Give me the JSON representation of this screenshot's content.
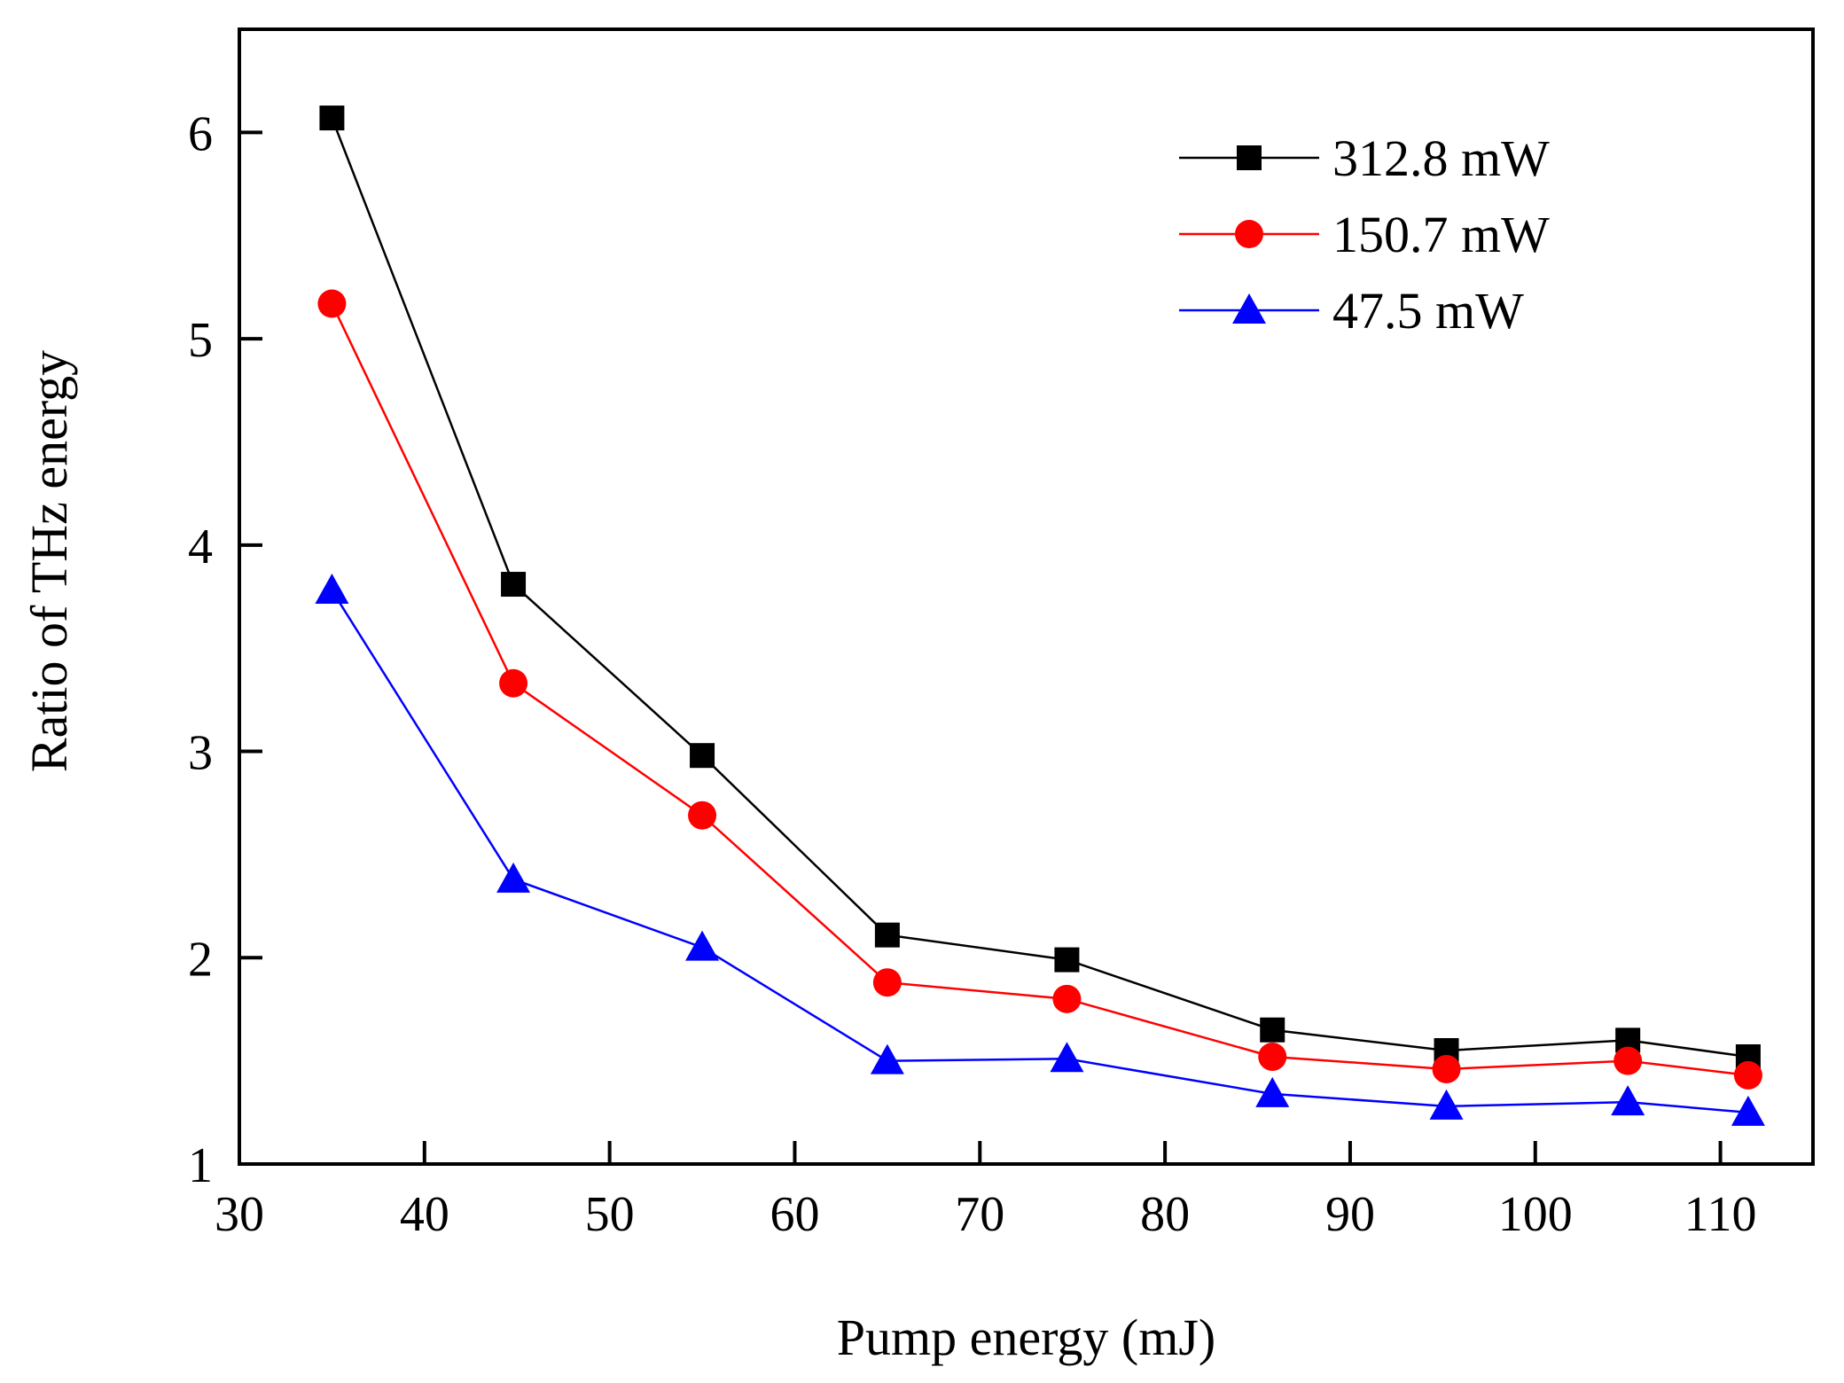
{
  "chart_data": {
    "type": "line",
    "title": "",
    "xlabel": "Pump energy (mJ)",
    "ylabel": "Ratio of THz energy",
    "xlim": [
      30,
      115
    ],
    "ylim": [
      1,
      6.5
    ],
    "xticks": [
      30,
      40,
      50,
      60,
      70,
      80,
      90,
      100,
      110
    ],
    "yticks": [
      1,
      2,
      3,
      4,
      5,
      6
    ],
    "legend_position": "top-right",
    "grid": false,
    "x": [
      35,
      44.8,
      55,
      65,
      74.7,
      85.8,
      95.2,
      105,
      111.5
    ],
    "series": [
      {
        "name": "312.8 mW",
        "color": "#000000",
        "marker": "square",
        "values": [
          6.07,
          3.81,
          2.98,
          2.11,
          1.99,
          1.65,
          1.55,
          1.6,
          1.52
        ]
      },
      {
        "name": "150.7 mW",
        "color": "#ff0000",
        "marker": "circle",
        "values": [
          5.17,
          3.33,
          2.69,
          1.88,
          1.8,
          1.52,
          1.46,
          1.5,
          1.43
        ]
      },
      {
        "name": "47.5 mW",
        "color": "#0000ff",
        "marker": "triangle",
        "values": [
          3.78,
          2.38,
          2.05,
          1.5,
          1.51,
          1.34,
          1.28,
          1.3,
          1.25
        ]
      }
    ]
  }
}
